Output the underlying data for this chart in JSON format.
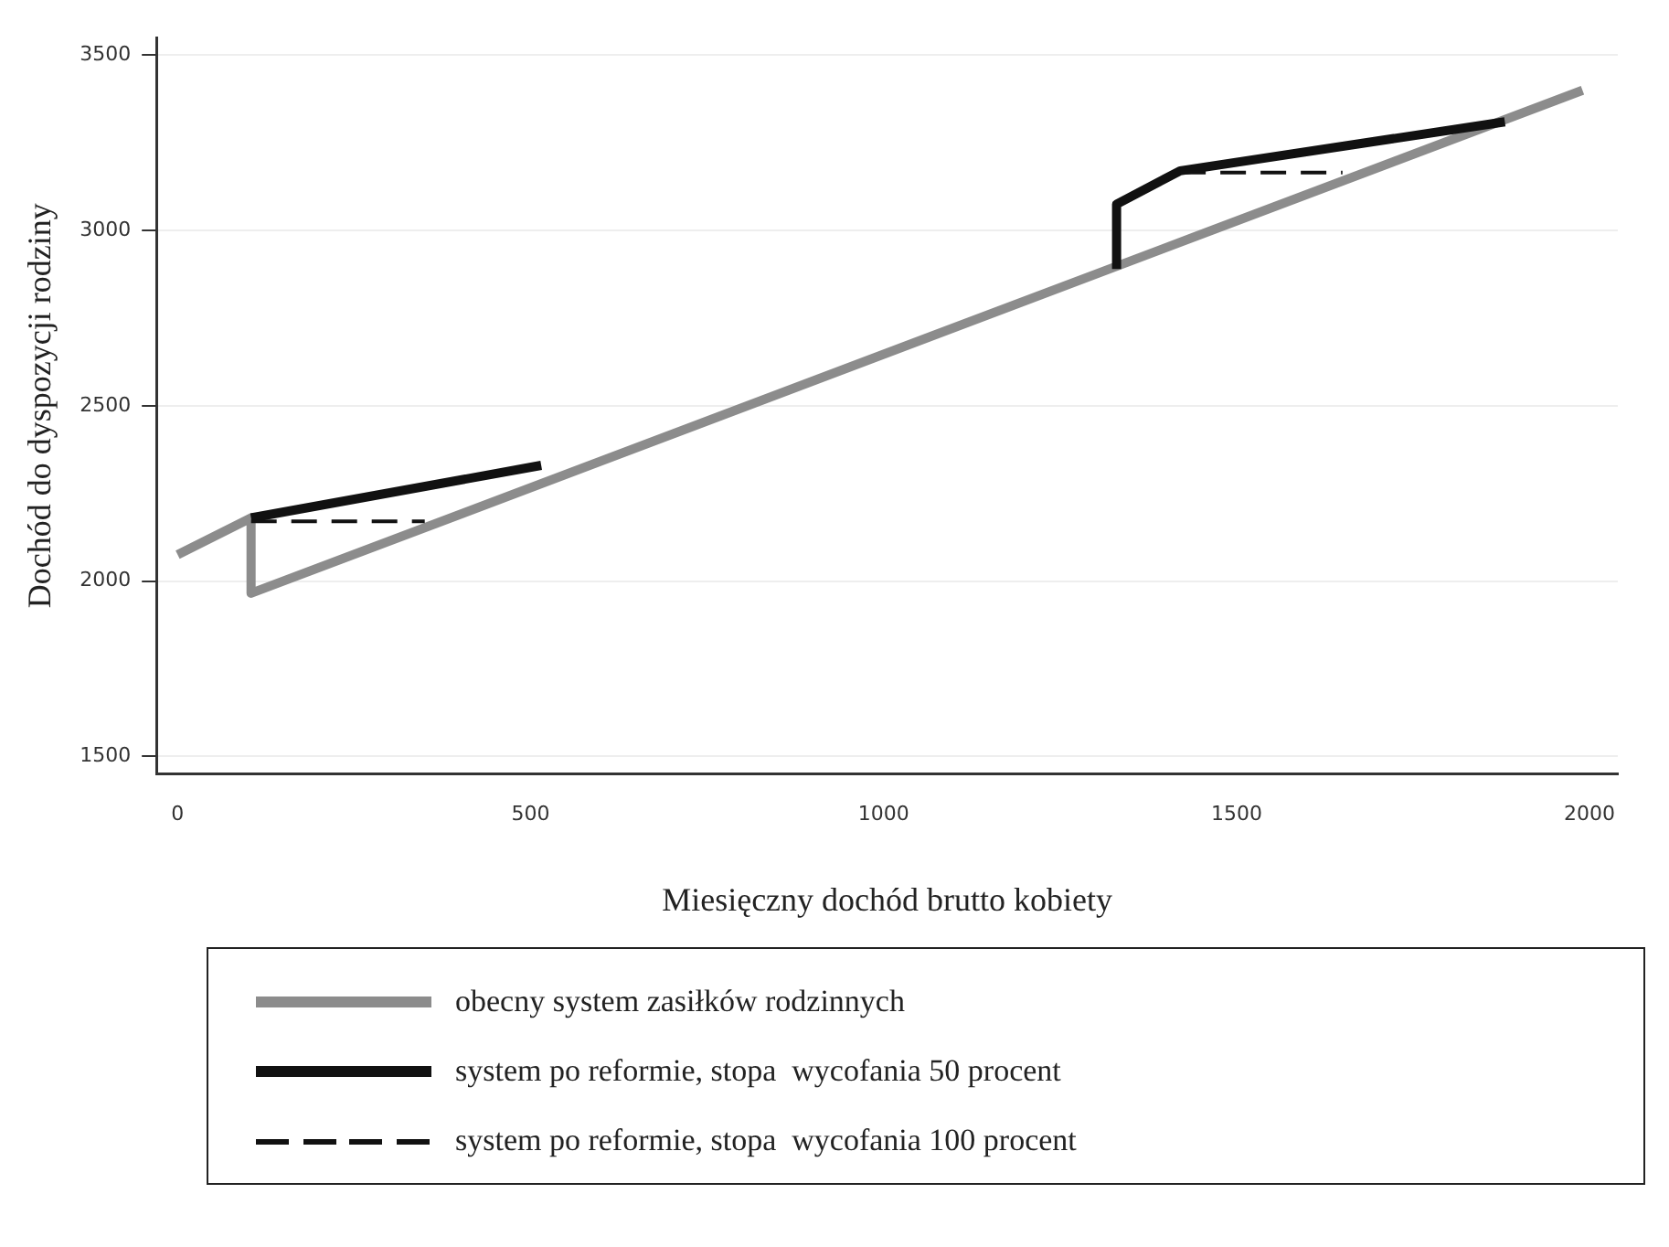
{
  "chart_data": {
    "type": "line",
    "xlabel": "Miesięczny dochód brutto kobiety",
    "ylabel": "Dochód do dyspozycji rodziny",
    "xlim": [
      -30,
      2040
    ],
    "xticks": [
      0,
      500,
      1000,
      1500,
      2000
    ],
    "ylim": [
      1450,
      3550
    ],
    "yticks": [
      1500,
      2000,
      2500,
      3000,
      3500
    ],
    "grid": "y",
    "legend": "bottom",
    "marker": "none",
    "series": [
      {
        "name": "obecny system zasiłków rodzinnych",
        "color": "#8c8c8c",
        "x": [
          0,
          104,
          104,
          1990
        ],
        "values": [
          2075,
          2180,
          1965,
          3400
        ],
        "line_style": "solid"
      },
      {
        "name": "system po reformie, stopa  wycofania 50 procent",
        "color": "#111111",
        "x": [
          104,
          515,
          null,
          1330,
          1330,
          1420,
          1880
        ],
        "values": [
          2180,
          2330,
          null,
          2890,
          3075,
          3170,
          3310
        ],
        "line_style": "solid"
      },
      {
        "name": "system po reformie, stopa  wycofania 100 procent",
        "color": "#111111",
        "x": [
          104,
          350,
          null,
          1420,
          1650
        ],
        "values": [
          2170,
          2170,
          null,
          3165,
          3165
        ],
        "line_style": "dashed"
      }
    ]
  }
}
